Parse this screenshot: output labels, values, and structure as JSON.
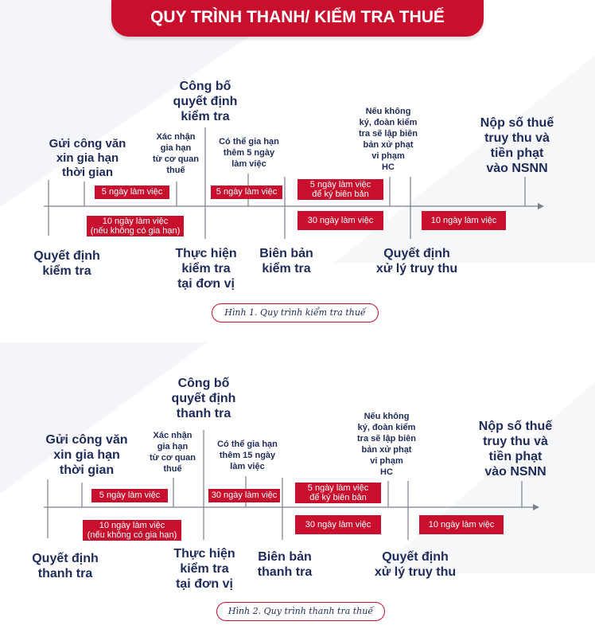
{
  "header": {
    "title": "QUY TRÌNH THANH/ KIỂM TRA THUẾ"
  },
  "diagram1": {
    "caption": "Hình 1. Quy trình kiểm tra thuế",
    "top_labels": {
      "gui_cong_van": [
        "Gửi công văn",
        "xin gia hạn",
        "thời gian"
      ],
      "xac_nhan": [
        "Xác nhận",
        "gia hạn",
        "từ cơ quan",
        "thuế"
      ],
      "cong_bo": [
        "Công bố",
        "quyết định",
        "kiểm tra"
      ],
      "co_the_gia_han": [
        "Có thể gia hạn",
        "thêm 5 ngày",
        "làm việc"
      ],
      "neu_khong_ky": [
        "Nếu không",
        "ký, đoàn kiểm",
        "tra sẽ lập biên",
        "bản xử phạt",
        "vi phạm",
        "HC"
      ],
      "nop_so_thue": [
        "Nộp số thuế",
        "truy thu và",
        "tiền phạt",
        "vào NSNN"
      ]
    },
    "bottom_labels": {
      "quyet_dinh": [
        "Quyết định",
        "kiểm tra"
      ],
      "thuc_hien": [
        "Thực hiện",
        "kiểm tra",
        "tại đơn vị"
      ],
      "bien_ban": [
        "Biên bản",
        "kiểm tra"
      ],
      "xu_ly": [
        "Quyết định",
        "xử lý truy thu"
      ]
    },
    "boxes": {
      "b1": [
        "5 ngày làm việc"
      ],
      "b2": [
        "10 ngày làm việc",
        "(nếu không có gia hạn)"
      ],
      "b3": [
        "5 ngày làm việc"
      ],
      "b4": [
        "5 ngày làm việc",
        "để ký biên bản"
      ],
      "b5": [
        "30 ngày làm việc"
      ],
      "b6": [
        "10 ngày làm việc"
      ]
    }
  },
  "diagram2": {
    "caption": "Hình 2. Quy trình thanh tra thuế",
    "top_labels": {
      "gui_cong_van": [
        "Gửi công văn",
        "xin gia hạn",
        "thời gian"
      ],
      "xac_nhan": [
        "Xác nhận",
        "gia hạn",
        "từ cơ quan",
        "thuế"
      ],
      "cong_bo": [
        "Công bố",
        "quyết định",
        "thanh tra"
      ],
      "co_the_gia_han": [
        "Có thể gia hạn",
        "thêm 15 ngày",
        "làm việc"
      ],
      "neu_khong_ky": [
        "Nếu không",
        "ký, đoàn kiểm",
        "tra sẽ lập biên",
        "bản xử phạt",
        "vi phạm",
        "HC"
      ],
      "nop_so_thue": [
        "Nộp số thuế",
        "truy thu và",
        "tiền phạt",
        "vào NSNN"
      ]
    },
    "bottom_labels": {
      "quyet_dinh": [
        "Quyết định",
        "thanh tra"
      ],
      "thuc_hien": [
        "Thực hiện",
        "kiểm tra",
        "tại đơn vị"
      ],
      "bien_ban": [
        "Biên bản",
        "thanh tra"
      ],
      "xu_ly": [
        "Quyết định",
        "xử lý truy thu"
      ]
    },
    "boxes": {
      "b1": [
        "5 ngày làm việc"
      ],
      "b2": [
        "10 ngày làm việc",
        "(nếu không có gia hạn)"
      ],
      "b3": [
        "30 ngày làm việc"
      ],
      "b4": [
        "5 ngày làm việc",
        "để ký biên bản"
      ],
      "b5": [
        "30 ngày làm việc"
      ],
      "b6": [
        "10 ngày làm việc"
      ]
    }
  },
  "colors": {
    "accent": "#c8102e",
    "text": "#1e2a5a",
    "line": "#7a7f8c"
  }
}
